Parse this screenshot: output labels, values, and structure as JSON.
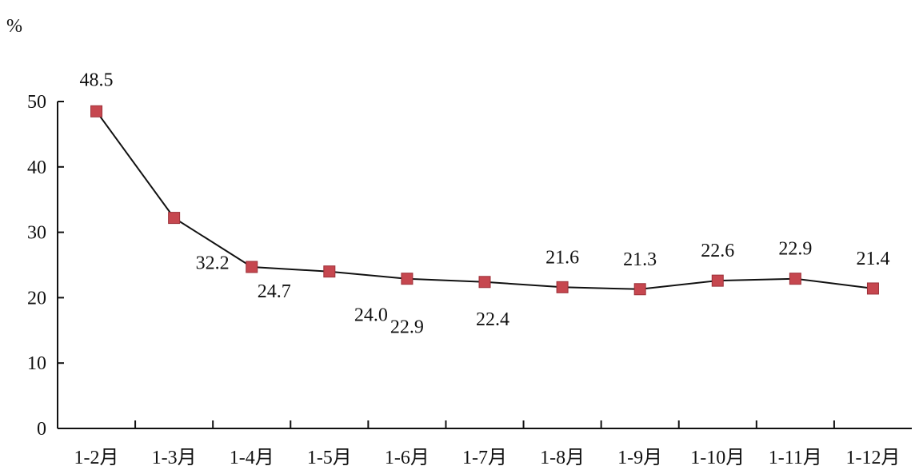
{
  "chart_data": {
    "type": "line",
    "title": "",
    "xlabel": "",
    "ylabel": "%",
    "ylim": [
      0,
      50
    ],
    "yticks": [
      0,
      10,
      20,
      30,
      40,
      50
    ],
    "grid": false,
    "legend": "none",
    "categories": [
      "1-2月",
      "1-3月",
      "1-4月",
      "1-5月",
      "1-6月",
      "1-7月",
      "1-8月",
      "1-9月",
      "1-10月",
      "1-11月",
      "1-12月"
    ],
    "series": [
      {
        "values": [
          48.5,
          32.2,
          24.7,
          24.0,
          22.9,
          22.4,
          21.6,
          21.3,
          22.6,
          22.9,
          21.4
        ],
        "labels": [
          "48.5",
          "32.2",
          "24.7",
          "24.0",
          "22.9",
          "22.4",
          "21.6",
          "21.3",
          "22.6",
          "22.9",
          "21.4"
        ],
        "line_color": "#111111",
        "marker_color": "#c6474f"
      }
    ]
  }
}
